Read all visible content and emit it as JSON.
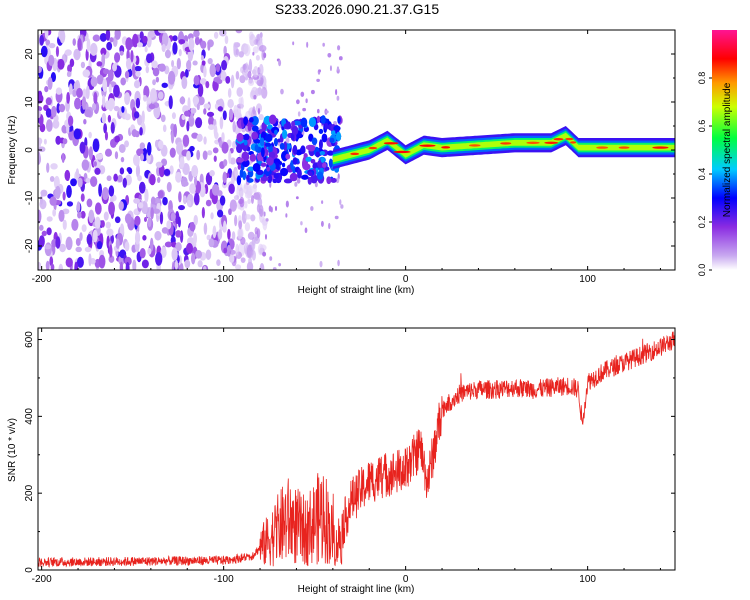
{
  "page_title": "S233.2026.090.21.37.G15",
  "colorscale": {
    "label": "Normalized spectral amplitude",
    "range": [
      0,
      1
    ],
    "tick_labels": [
      "0.0",
      "0.2",
      "0.4",
      "0.6",
      "0.8"
    ],
    "stops": [
      "#ffffff",
      "#8a2be2",
      "#0000ff",
      "#00ffff",
      "#00ff00",
      "#ffff00",
      "#ff8000",
      "#ff0000",
      "#ff1493"
    ]
  },
  "chart_data": [
    {
      "type": "heatmap",
      "title": "",
      "xlabel": "Height of straight line (km)",
      "ylabel": "Frequency (Hz)",
      "xlim": [
        -202,
        148
      ],
      "ylim": [
        -25,
        25
      ],
      "x_tick_labels": [
        "-200",
        "-100",
        "0",
        "100"
      ],
      "y_tick_labels": [
        "-20",
        "-10",
        "0",
        "10",
        "20"
      ],
      "ridge": {
        "x": [
          -40,
          -30,
          -20,
          -10,
          0,
          10,
          20,
          40,
          60,
          80,
          88,
          95,
          110,
          130,
          148
        ],
        "y": [
          -2,
          -1,
          0,
          2,
          -1,
          1,
          0.5,
          1,
          1.5,
          1.5,
          3,
          0.5,
          0.5,
          0.5,
          0.5
        ]
      },
      "regions": [
        {
          "name": "noise",
          "x_range": [
            -202,
            -80
          ],
          "y_range": [
            -25,
            25
          ]
        },
        {
          "name": "transition",
          "x_range": [
            -90,
            -35
          ],
          "y_range": [
            -6,
            7
          ]
        }
      ]
    },
    {
      "type": "line",
      "title": "",
      "xlabel": "Height of straight line (km)",
      "ylabel": "SNR (10 * v/v)",
      "xlim": [
        -202,
        148
      ],
      "ylim": [
        0,
        630
      ],
      "x_tick_labels": [
        "-200",
        "-100",
        "0",
        "100"
      ],
      "y_tick_labels": [
        "0",
        "200",
        "400",
        "600"
      ],
      "series": [
        {
          "name": "SNR",
          "color": "#e8231e",
          "envelope_x": [
            -202,
            -100,
            -85,
            -75,
            -65,
            -55,
            -45,
            -38,
            -30,
            -20,
            -10,
            0,
            8,
            12,
            15,
            20,
            30,
            40,
            50,
            60,
            70,
            80,
            90,
            95,
            97,
            100,
            110,
            120,
            130,
            140,
            148
          ],
          "envelope_y": [
            20,
            25,
            35,
            80,
            130,
            100,
            150,
            60,
            180,
            230,
            250,
            260,
            320,
            230,
            300,
            420,
            460,
            470,
            470,
            475,
            470,
            475,
            480,
            470,
            380,
            490,
            520,
            540,
            560,
            580,
            600
          ]
        }
      ]
    }
  ]
}
